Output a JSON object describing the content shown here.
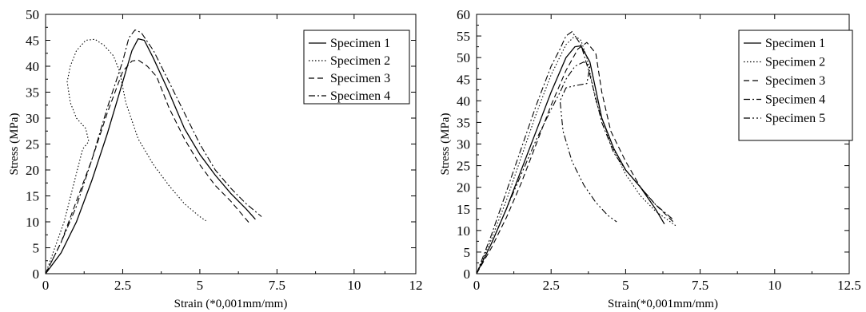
{
  "chart_data": [
    {
      "type": "line",
      "xlabel": "Strain (*0,001mm/mm)",
      "ylabel": "Stress (MPa)",
      "xlim": [
        0,
        12
      ],
      "ylim": [
        0,
        50
      ],
      "xticks": [
        0,
        2.5,
        5,
        7.5,
        10,
        12
      ],
      "xtick_labels": [
        "0",
        "2.5",
        "5",
        "7.5",
        "10",
        "12"
      ],
      "yticks": [
        0,
        5,
        10,
        15,
        20,
        25,
        30,
        35,
        40,
        45,
        50
      ],
      "ytick_labels": [
        "0",
        "5",
        "10",
        "15",
        "20",
        "25",
        "30",
        "35",
        "40",
        "45",
        "50"
      ],
      "grid": false,
      "legend_position": "top-right",
      "series": [
        {
          "name": "Specimen 1",
          "dash": "solid",
          "x": [
            0,
            0.5,
            1.0,
            1.5,
            2.0,
            2.5,
            2.8,
            3.0,
            3.2,
            3.5,
            4.0,
            4.5,
            5.0,
            5.5,
            6.0,
            6.5,
            6.8
          ],
          "y": [
            0,
            4,
            10,
            18,
            27,
            37,
            43,
            45.3,
            45,
            41.5,
            35,
            28,
            23,
            19,
            15.5,
            12.5,
            10.5
          ]
        },
        {
          "name": "Specimen 2",
          "dash": "dotted",
          "x": [
            0,
            0.3,
            0.6,
            0.9,
            1.2,
            1.4,
            1.3,
            1.0,
            0.8,
            0.7,
            0.8,
            1.0,
            1.3,
            1.6,
            1.9,
            2.2,
            2.4,
            2.6,
            3.0,
            3.5,
            4.0,
            4.5,
            5.0,
            5.2
          ],
          "y": [
            0,
            5,
            10,
            17,
            24,
            25.5,
            28,
            30,
            33,
            37,
            40,
            43,
            45,
            45.2,
            44,
            42,
            39,
            33,
            26,
            21,
            17,
            13.5,
            11,
            10.2
          ]
        },
        {
          "name": "Specimen 3",
          "dash": "dashed",
          "x": [
            0,
            0.5,
            1.0,
            1.5,
            2.0,
            2.5,
            2.8,
            3.0,
            3.3,
            3.6,
            4.0,
            4.5,
            5.0,
            5.5,
            6.0,
            6.6
          ],
          "y": [
            0,
            6,
            14,
            22,
            31,
            39,
            41,
            41.2,
            40,
            38,
            32,
            26,
            21,
            17,
            14,
            9.8
          ]
        },
        {
          "name": "Specimen 4",
          "dash": "dashdot",
          "x": [
            0,
            0.5,
            1.0,
            1.5,
            2.0,
            2.5,
            2.7,
            2.9,
            3.1,
            3.5,
            4.0,
            4.5,
            5.0,
            5.5,
            6.0,
            6.5,
            7.0
          ],
          "y": [
            0,
            6,
            13,
            22,
            32,
            41,
            45.5,
            47,
            46.5,
            43,
            37,
            31,
            25,
            20,
            16.5,
            13.5,
            11
          ]
        }
      ]
    },
    {
      "type": "line",
      "xlabel": "Strain(*0,001mm/mm)",
      "ylabel": "Stress (MPa)",
      "xlim": [
        0,
        12.5
      ],
      "ylim": [
        0,
        60
      ],
      "xticks": [
        0,
        2.5,
        5,
        7.5,
        10,
        12.5
      ],
      "xtick_labels": [
        "0",
        "2.5",
        "5",
        "7.5",
        "10",
        "12.5"
      ],
      "yticks": [
        0,
        5,
        10,
        15,
        20,
        25,
        30,
        35,
        40,
        45,
        50,
        55,
        60
      ],
      "ytick_labels": [
        "0",
        "5",
        "10",
        "15",
        "20",
        "25",
        "30",
        "35",
        "40",
        "45",
        "50",
        "55",
        "60"
      ],
      "grid": false,
      "legend_position": "top-right",
      "series": [
        {
          "name": "Specimen 1",
          "dash": "solid",
          "x": [
            0,
            0.5,
            1.0,
            1.5,
            2.0,
            2.5,
            3.0,
            3.3,
            3.5,
            3.8,
            4.2,
            4.6,
            5.0,
            5.5,
            6.0,
            6.3
          ],
          "y": [
            0,
            7,
            15,
            24,
            33,
            42,
            50,
            52.5,
            52.7,
            49,
            36,
            29,
            24,
            20,
            15,
            11.5
          ]
        },
        {
          "name": "Specimen 2",
          "dash": "dotted",
          "x": [
            0,
            0.5,
            1.0,
            1.5,
            2.0,
            2.5,
            3.0,
            3.3,
            3.5,
            3.7,
            4.0,
            4.5,
            5.0,
            5.5,
            6.0,
            6.5,
            6.7
          ],
          "y": [
            0,
            8,
            17,
            27,
            37,
            46,
            53,
            55,
            54,
            50,
            40,
            30,
            23,
            18,
            14.5,
            12,
            11
          ]
        },
        {
          "name": "Specimen 3",
          "dash": "dashed",
          "x": [
            0,
            0.5,
            1.0,
            1.5,
            2.0,
            2.5,
            3.0,
            3.4,
            3.7,
            4.0,
            4.2,
            4.5,
            5.0,
            5.5,
            6.0,
            6.6
          ],
          "y": [
            0,
            6,
            13,
            21,
            30,
            39,
            47,
            52,
            53.5,
            51,
            42,
            33,
            26,
            20,
            16,
            12
          ]
        },
        {
          "name": "Specimen 4",
          "dash": "dashdot",
          "x": [
            0,
            0.5,
            1.0,
            1.5,
            2.0,
            2.5,
            2.8,
            3.0,
            3.2,
            3.5,
            3.8,
            4.2,
            4.6,
            5.0,
            5.5,
            6.0,
            6.6
          ],
          "y": [
            0,
            9,
            19,
            29,
            39,
            48,
            52,
            55,
            56,
            53,
            46,
            35,
            28,
            24,
            20,
            16,
            12.5
          ]
        },
        {
          "name": "Specimen 5",
          "dash": "dashdotdot",
          "x": [
            0,
            0.5,
            1.0,
            1.5,
            2.0,
            2.5,
            2.8,
            3.0,
            3.3,
            3.6,
            3.8,
            3.7,
            3.3,
            3.0,
            2.8,
            2.9,
            3.2,
            3.6,
            4.0,
            4.4,
            4.7
          ],
          "y": [
            0,
            7,
            15,
            23,
            31,
            38,
            42,
            45,
            48,
            49,
            48,
            44,
            43.5,
            43,
            40,
            33,
            26,
            20.5,
            16.5,
            13.5,
            12
          ]
        }
      ]
    }
  ]
}
